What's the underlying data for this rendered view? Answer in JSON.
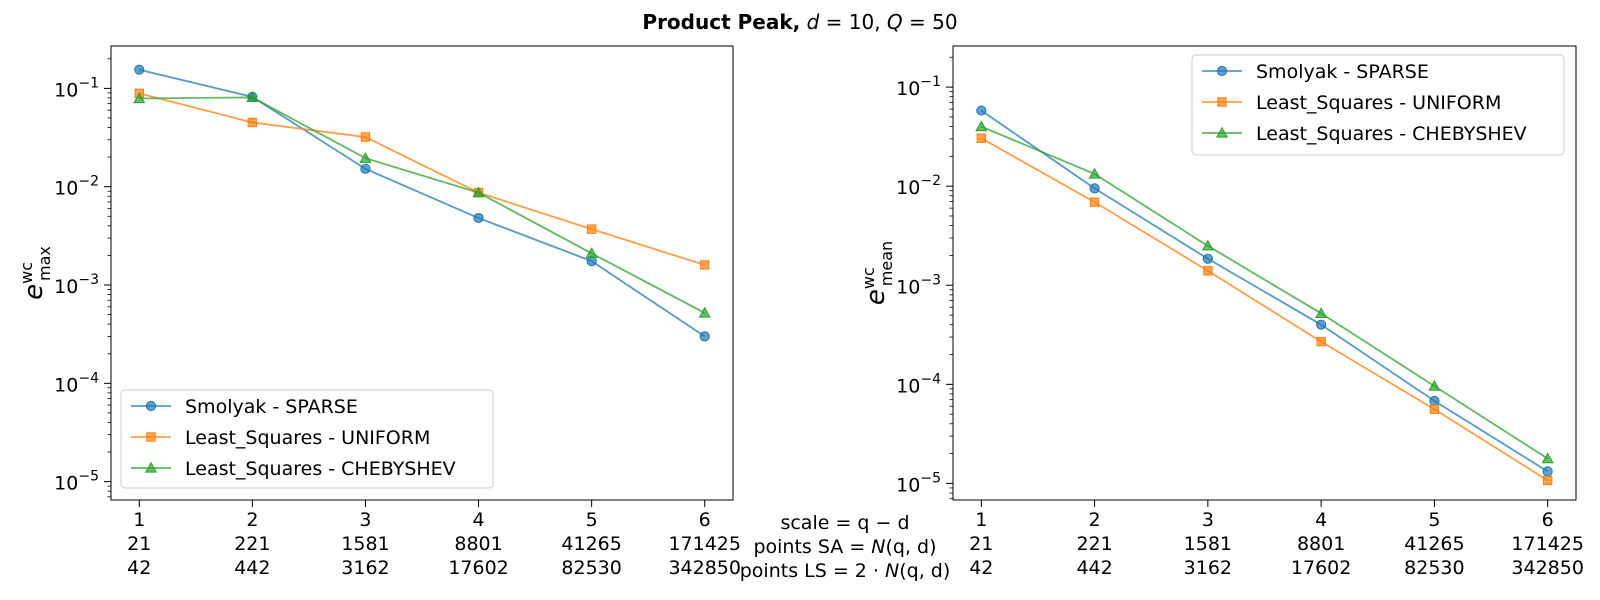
{
  "title": {
    "bold": "Product Peak,",
    "d_sym": "d",
    "d_val": " = 10,",
    "q_sym": "Q",
    "q_val": " = 50"
  },
  "colors": {
    "smolyak": "#1f77b4",
    "uniform": "#ff7f0e",
    "chebyshev": "#2ca02c"
  },
  "center_labels": {
    "line1": "scale = q − d",
    "line2_pre": "points SA = ",
    "line2_fn": "N",
    "line2_args": "(q, d)",
    "line3_pre": "points LS = 2 · ",
    "line3_fn": "N",
    "line3_args": "(q, d)"
  },
  "chart_data": [
    {
      "type": "line",
      "yscale": "log",
      "ylabel_base": "e",
      "ylabel_sup": "wc",
      "ylabel_sub": "max",
      "ylim": [
        6.5e-06,
        0.27
      ],
      "xlim": [
        0.75,
        6.25
      ],
      "yticks": [
        {
          "value": 0.1,
          "exp": "−1"
        },
        {
          "value": 0.01,
          "exp": "−2"
        },
        {
          "value": 0.001,
          "exp": "−3"
        },
        {
          "value": 0.0001,
          "exp": "−4"
        },
        {
          "value": 1e-05,
          "exp": "−5"
        }
      ],
      "x": [
        1,
        2,
        3,
        4,
        5,
        6
      ],
      "xtick_rows": [
        [
          "1",
          "2",
          "3",
          "4",
          "5",
          "6"
        ],
        [
          "21",
          "221",
          "1581",
          "8801",
          "41265",
          "171425"
        ],
        [
          "42",
          "442",
          "3162",
          "17602",
          "82530",
          "342850"
        ]
      ],
      "legend": "lower-left",
      "series": [
        {
          "name": "Smolyak - SPARSE",
          "marker": "circle",
          "color": "#1f77b4",
          "values": [
            0.155,
            0.082,
            0.0152,
            0.0048,
            0.00175,
            0.0003
          ]
        },
        {
          "name": "Least_Squares - UNIFORM",
          "marker": "square",
          "color": "#ff7f0e",
          "values": [
            0.089,
            0.045,
            0.032,
            0.0087,
            0.0037,
            0.0016
          ]
        },
        {
          "name": "Least_Squares - CHEBYSHEV",
          "marker": "triangle",
          "color": "#2ca02c",
          "values": [
            0.079,
            0.081,
            0.0195,
            0.0087,
            0.0021,
            0.00052
          ]
        }
      ]
    },
    {
      "type": "line",
      "yscale": "log",
      "ylabel_base": "e",
      "ylabel_sup": "wc",
      "ylabel_sub": "mean",
      "ylim": [
        6.8e-06,
        0.26
      ],
      "xlim": [
        0.75,
        6.25
      ],
      "yticks": [
        {
          "value": 0.1,
          "exp": "−1"
        },
        {
          "value": 0.01,
          "exp": "−2"
        },
        {
          "value": 0.001,
          "exp": "−3"
        },
        {
          "value": 0.0001,
          "exp": "−4"
        },
        {
          "value": 1e-05,
          "exp": "−5"
        }
      ],
      "x": [
        1,
        2,
        3,
        4,
        5,
        6
      ],
      "xtick_rows": [
        [
          "1",
          "2",
          "3",
          "4",
          "5",
          "6"
        ],
        [
          "21",
          "221",
          "1581",
          "8801",
          "41265",
          "171425"
        ],
        [
          "42",
          "442",
          "3162",
          "17602",
          "82530",
          "342850"
        ]
      ],
      "legend": "upper-right",
      "series": [
        {
          "name": "Smolyak - SPARSE",
          "marker": "circle",
          "color": "#1f77b4",
          "values": [
            0.058,
            0.0095,
            0.00185,
            0.0004,
            6.8e-05,
            1.32e-05
          ]
        },
        {
          "name": "Least_Squares - UNIFORM",
          "marker": "square",
          "color": "#ff7f0e",
          "values": [
            0.0305,
            0.0069,
            0.0014,
            0.00027,
            5.6e-05,
            1.07e-05
          ]
        },
        {
          "name": "Least_Squares - CHEBYSHEV",
          "marker": "triangle",
          "color": "#2ca02c",
          "values": [
            0.04,
            0.0133,
            0.0025,
            0.00052,
            9.6e-05,
            1.78e-05
          ]
        }
      ]
    }
  ]
}
